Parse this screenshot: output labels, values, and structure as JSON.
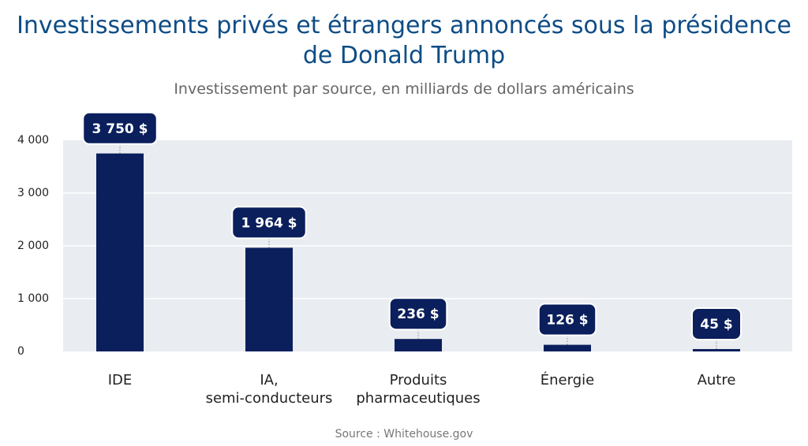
{
  "title_line1": "Investissements privés et étrangers annoncés sous la présidence",
  "title_line2": "de Donald Trump",
  "subtitle": "Investissement par source, en milliards de dollars américains",
  "source": "Source : Whitehouse.gov",
  "colors": {
    "bar": "#0a1f5c",
    "plot_bg": "#e9ecf0",
    "gridline": "#ffffff",
    "title": "#0e4c86"
  },
  "chart_data": {
    "type": "bar",
    "categories": [
      [
        "IDE"
      ],
      [
        "IA,",
        "semi-conducteurs"
      ],
      [
        "Produits",
        "pharmaceutiques"
      ],
      [
        "Énergie"
      ],
      [
        "Autre"
      ]
    ],
    "values": [
      3750,
      1964,
      236,
      126,
      45
    ],
    "data_labels": [
      "3 750 $",
      "1 964 $",
      "236 $",
      "126 $",
      "45 $"
    ],
    "yticks": [
      0,
      1000,
      2000,
      3000,
      4000
    ],
    "ytick_labels": [
      "0",
      "1 000",
      "2 000",
      "3 000",
      "4 000"
    ],
    "ylim": [
      0,
      4000
    ],
    "grid": true,
    "legend": "none"
  }
}
